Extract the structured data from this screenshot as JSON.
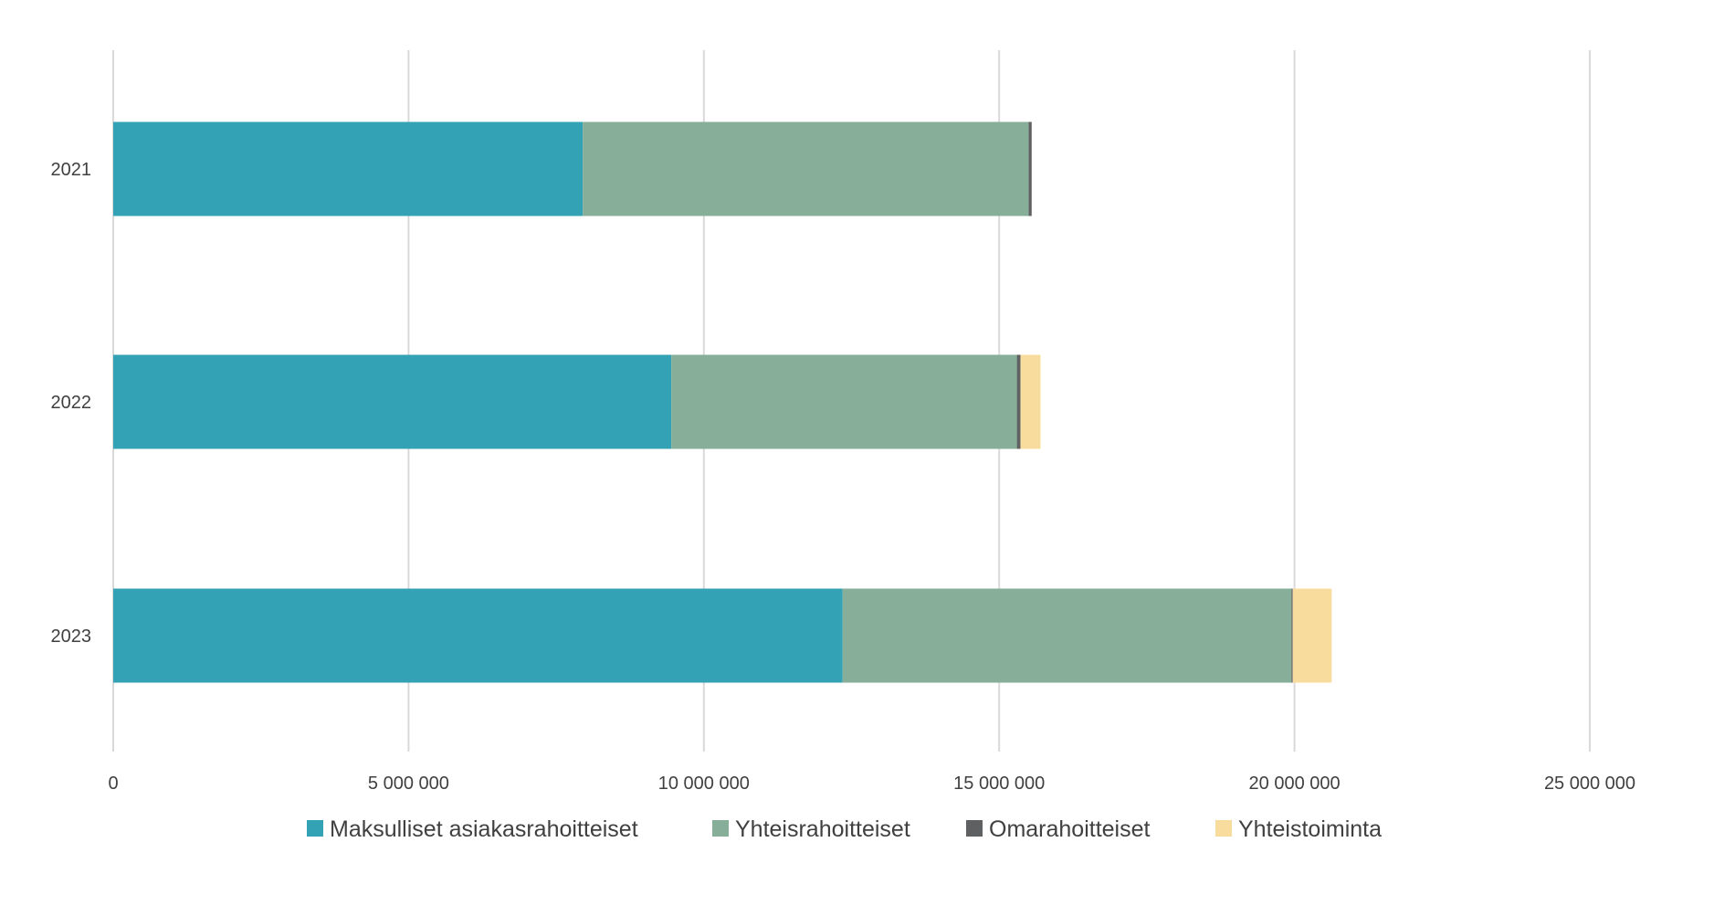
{
  "chart_data": {
    "type": "bar",
    "orientation": "horizontal",
    "stacked": true,
    "categories": [
      "2021",
      "2022",
      "2023"
    ],
    "series": [
      {
        "name": "Maksulliset asiakasrahoitteiset",
        "color": "#33A2B5",
        "values": [
          7950000,
          9450000,
          12350000
        ]
      },
      {
        "name": "Yhteisrahoitteiset",
        "color": "#86AE98",
        "values": [
          7550000,
          5850000,
          7600000
        ]
      },
      {
        "name": "Omarahoitteiset",
        "color": "#5F6062",
        "values": [
          50000,
          60000,
          20000
        ]
      },
      {
        "name": "Yhteistoiminta",
        "color": "#F8DC9E",
        "values": [
          0,
          340000,
          660000
        ]
      }
    ],
    "x_ticks": [
      {
        "value": 0,
        "label": "0"
      },
      {
        "value": 5000000,
        "label": "5 000 000"
      },
      {
        "value": 10000000,
        "label": "10 000 000"
      },
      {
        "value": 15000000,
        "label": "15 000 000"
      },
      {
        "value": 20000000,
        "label": "20 000 000"
      },
      {
        "value": 25000000,
        "label": "25 000 000"
      }
    ],
    "xlim": [
      0,
      25000000
    ],
    "title": "",
    "xlabel": "",
    "ylabel": "",
    "grid": "vertical",
    "gridline_color": "#D9D9D9",
    "legend_position": "bottom"
  }
}
